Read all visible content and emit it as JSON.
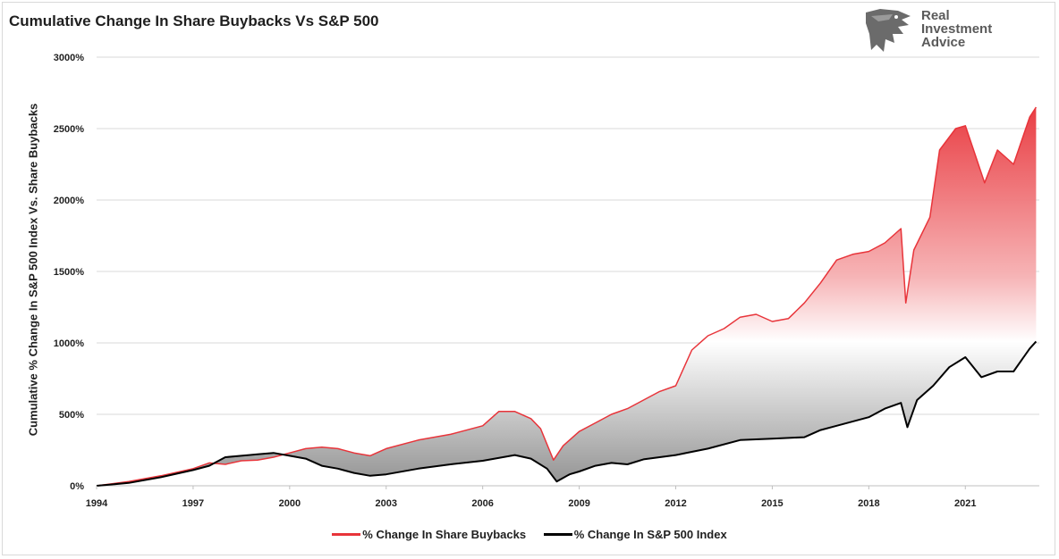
{
  "brand": {
    "line1": "Real",
    "line2": "Investment",
    "line3": "Advice",
    "logo_icon": "eagle-head-icon"
  },
  "chart_data": {
    "type": "line",
    "title": "Cumulative Change In Share Buybacks Vs S&P 500",
    "ylabel": "Cumulative % Change In S&P 500 Index Vs. Share Buybacks",
    "xlabel": "",
    "ylim": [
      0,
      3000
    ],
    "yticks": [
      0,
      500,
      1000,
      1500,
      2000,
      2500,
      3000
    ],
    "ytick_labels": [
      "0%",
      "500%",
      "1000%",
      "1500%",
      "2000%",
      "2500%",
      "3000%"
    ],
    "xlim": [
      1994,
      2023.3
    ],
    "xticks": [
      1994,
      1997,
      2000,
      2003,
      2006,
      2009,
      2012,
      2015,
      2018,
      2021
    ],
    "grid": "horizontal",
    "legend_position": "bottom",
    "fill_between_series": true,
    "series": [
      {
        "name": "% Change In Share Buybacks",
        "color": "#e8343a",
        "points": [
          [
            1994,
            0
          ],
          [
            1995,
            30
          ],
          [
            1996,
            70
          ],
          [
            1997,
            120
          ],
          [
            1997.5,
            160
          ],
          [
            1998,
            150
          ],
          [
            1998.5,
            175
          ],
          [
            1999,
            180
          ],
          [
            1999.5,
            200
          ],
          [
            2000,
            230
          ],
          [
            2000.5,
            260
          ],
          [
            2001,
            270
          ],
          [
            2001.5,
            260
          ],
          [
            2002,
            230
          ],
          [
            2002.5,
            210
          ],
          [
            2003,
            260
          ],
          [
            2004,
            320
          ],
          [
            2005,
            360
          ],
          [
            2006,
            420
          ],
          [
            2006.5,
            520
          ],
          [
            2007,
            520
          ],
          [
            2007.5,
            470
          ],
          [
            2007.8,
            400
          ],
          [
            2008.2,
            180
          ],
          [
            2008.5,
            280
          ],
          [
            2009,
            380
          ],
          [
            2009.5,
            440
          ],
          [
            2010,
            500
          ],
          [
            2010.5,
            540
          ],
          [
            2011,
            600
          ],
          [
            2011.5,
            660
          ],
          [
            2012,
            700
          ],
          [
            2012.5,
            950
          ],
          [
            2013,
            1050
          ],
          [
            2013.5,
            1100
          ],
          [
            2014,
            1180
          ],
          [
            2014.5,
            1200
          ],
          [
            2015,
            1150
          ],
          [
            2015.5,
            1170
          ],
          [
            2016,
            1280
          ],
          [
            2016.5,
            1420
          ],
          [
            2017,
            1580
          ],
          [
            2017.5,
            1620
          ],
          [
            2018,
            1640
          ],
          [
            2018.5,
            1700
          ],
          [
            2019,
            1800
          ],
          [
            2019.15,
            1280
          ],
          [
            2019.4,
            1650
          ],
          [
            2019.9,
            1880
          ],
          [
            2020.2,
            2350
          ],
          [
            2020.7,
            2500
          ],
          [
            2021,
            2520
          ],
          [
            2021.3,
            2320
          ],
          [
            2021.6,
            2120
          ],
          [
            2022,
            2350
          ],
          [
            2022.5,
            2250
          ],
          [
            2023,
            2580
          ],
          [
            2023.2,
            2650
          ]
        ]
      },
      {
        "name": "% Change In S&P 500 Index",
        "color": "#000000",
        "points": [
          [
            1994,
            0
          ],
          [
            1995,
            20
          ],
          [
            1996,
            60
          ],
          [
            1997,
            110
          ],
          [
            1997.5,
            140
          ],
          [
            1998,
            200
          ],
          [
            1998.5,
            210
          ],
          [
            1999,
            220
          ],
          [
            1999.5,
            230
          ],
          [
            2000,
            210
          ],
          [
            2000.5,
            190
          ],
          [
            2001,
            140
          ],
          [
            2001.5,
            120
          ],
          [
            2002,
            90
          ],
          [
            2002.5,
            70
          ],
          [
            2003,
            80
          ],
          [
            2004,
            120
          ],
          [
            2005,
            150
          ],
          [
            2006,
            175
          ],
          [
            2007,
            215
          ],
          [
            2007.5,
            190
          ],
          [
            2008,
            120
          ],
          [
            2008.3,
            30
          ],
          [
            2008.7,
            80
          ],
          [
            2009,
            100
          ],
          [
            2009.5,
            140
          ],
          [
            2010,
            160
          ],
          [
            2010.5,
            150
          ],
          [
            2011,
            185
          ],
          [
            2012,
            215
          ],
          [
            2013,
            260
          ],
          [
            2014,
            320
          ],
          [
            2015,
            330
          ],
          [
            2016,
            340
          ],
          [
            2016.5,
            390
          ],
          [
            2017,
            420
          ],
          [
            2018,
            480
          ],
          [
            2018.5,
            540
          ],
          [
            2019,
            580
          ],
          [
            2019.2,
            410
          ],
          [
            2019.5,
            600
          ],
          [
            2020,
            700
          ],
          [
            2020.5,
            830
          ],
          [
            2021,
            900
          ],
          [
            2021.5,
            760
          ],
          [
            2022,
            800
          ],
          [
            2022.5,
            800
          ],
          [
            2023,
            960
          ],
          [
            2023.2,
            1010
          ]
        ]
      }
    ]
  }
}
